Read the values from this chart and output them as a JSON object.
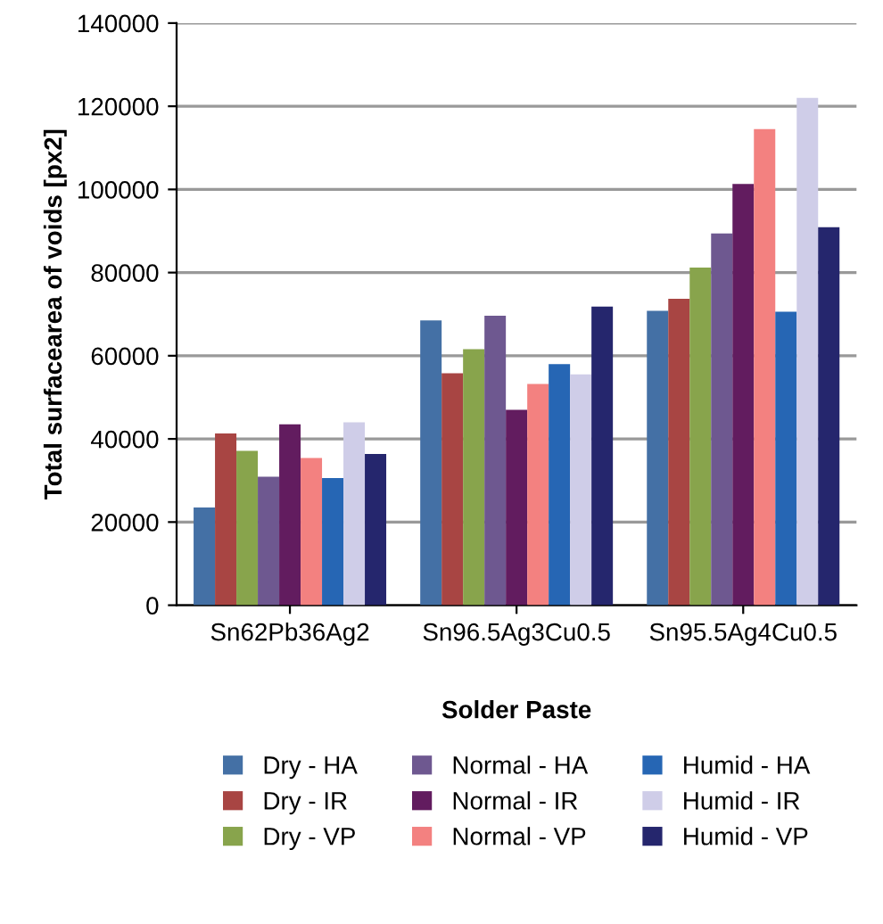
{
  "chart_data": {
    "type": "bar",
    "xlabel": "Solder Paste",
    "ylabel": "Total surfacearea of voids [px2]",
    "categories": [
      "Sn62Pb36Ag2",
      "Sn96.5Ag3Cu0.5",
      "Sn95.5Ag4Cu0.5"
    ],
    "series": [
      {
        "name": "Dry - HA",
        "color": "#4470a5",
        "values": [
          23500,
          68500,
          70800
        ]
      },
      {
        "name": "Dry - IR",
        "color": "#a84543",
        "values": [
          41300,
          55800,
          73700
        ]
      },
      {
        "name": "Dry - VP",
        "color": "#88a44c",
        "values": [
          37100,
          61600,
          81200
        ]
      },
      {
        "name": "Normal - HA",
        "color": "#6e5890",
        "values": [
          30900,
          69600,
          89400
        ]
      },
      {
        "name": "Normal - IR",
        "color": "#621c5f",
        "values": [
          43500,
          47000,
          101300
        ]
      },
      {
        "name": "Normal - VP",
        "color": "#f38180",
        "values": [
          35400,
          53200,
          114500
        ]
      },
      {
        "name": "Humid - HA",
        "color": "#2666b4",
        "values": [
          30600,
          58000,
          70600
        ]
      },
      {
        "name": "Humid - IR",
        "color": "#cfcde8",
        "values": [
          44000,
          55500,
          122000
        ]
      },
      {
        "name": "Humid - VP",
        "color": "#25266d",
        "values": [
          36400,
          71800,
          90900
        ]
      }
    ],
    "ylim": [
      0,
      140000
    ],
    "yticks": [
      0,
      20000,
      40000,
      60000,
      80000,
      100000,
      120000,
      140000
    ],
    "grid": "y",
    "legend": "bottom"
  }
}
